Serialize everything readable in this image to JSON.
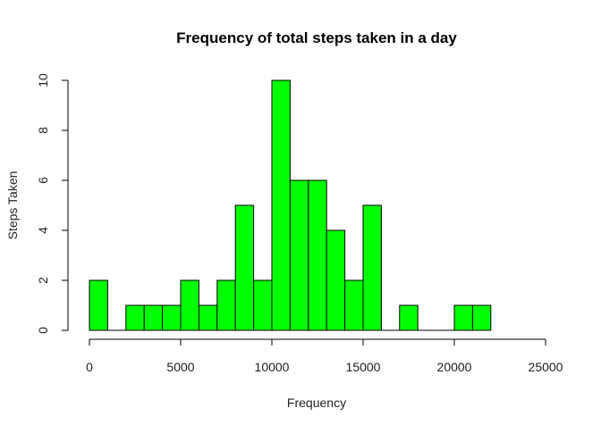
{
  "chart_data": {
    "type": "bar",
    "subtype": "histogram",
    "title": "Frequency of total steps taken in a day",
    "xlabel": "Frequency",
    "ylabel": "Steps Taken",
    "xlim": [
      0,
      25000
    ],
    "ylim": [
      0,
      10
    ],
    "x_ticks": [
      0,
      5000,
      10000,
      15000,
      20000,
      25000
    ],
    "x_tick_labels": [
      "0",
      "5000",
      "10000",
      "15000",
      "20000",
      "25000"
    ],
    "y_ticks": [
      0,
      2,
      4,
      6,
      8,
      10
    ],
    "y_tick_labels": [
      "0",
      "2",
      "4",
      "6",
      "8",
      "10"
    ],
    "bin_width": 1000,
    "bin_starts": [
      0,
      1000,
      2000,
      3000,
      4000,
      5000,
      6000,
      7000,
      8000,
      9000,
      10000,
      11000,
      12000,
      13000,
      14000,
      15000,
      16000,
      17000,
      18000,
      19000,
      20000,
      21000
    ],
    "values": [
      2,
      0,
      1,
      1,
      1,
      2,
      1,
      2,
      5,
      2,
      10,
      6,
      6,
      4,
      2,
      5,
      0,
      1,
      0,
      0,
      1,
      1
    ],
    "bar_color": "#00ff00",
    "bar_border_color": "#000000",
    "grid": false,
    "legend": "none"
  }
}
